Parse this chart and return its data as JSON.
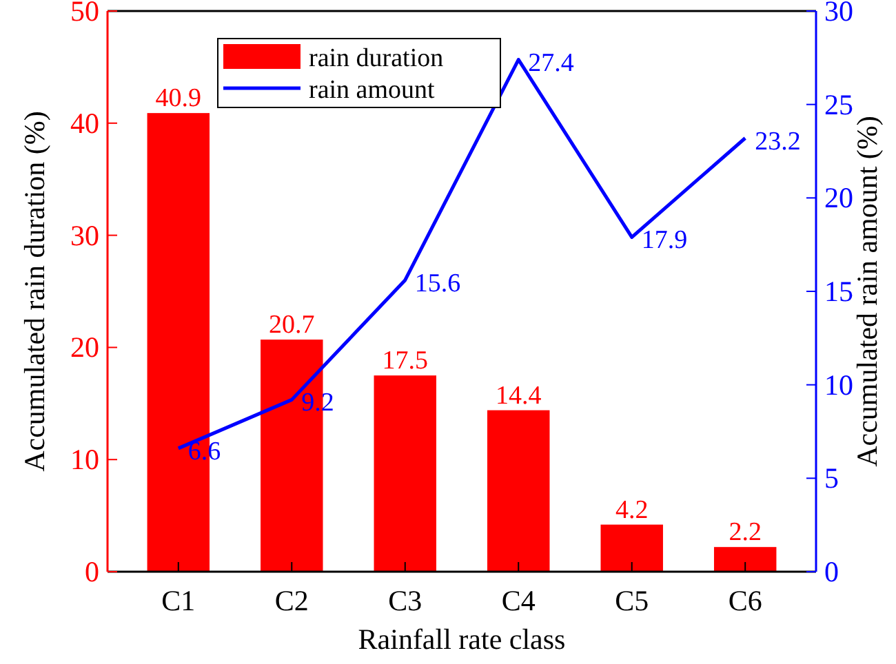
{
  "chart_data": {
    "type": "bar",
    "xlabel": "Rainfall rate class",
    "ylabel": "Accumulated rain duration (%)",
    "y2label": "Accumulated rain amount (%)",
    "categories": [
      "C1",
      "C2",
      "C3",
      "C4",
      "C5",
      "C6"
    ],
    "series": [
      {
        "name": "rain duration",
        "color": "#ff0000",
        "values": [
          40.9,
          20.7,
          17.5,
          14.4,
          4.2,
          2.2
        ]
      },
      {
        "name": "rain amount",
        "type": "line",
        "axis": "y2",
        "color": "#0000ff",
        "values": [
          6.6,
          9.2,
          15.6,
          27.4,
          17.9,
          23.2
        ]
      }
    ],
    "ylim": [
      0,
      50
    ],
    "yticks": [
      0,
      10,
      20,
      30,
      40,
      50
    ],
    "y2lim": [
      0,
      30
    ],
    "y2ticks": [
      0,
      5,
      10,
      15,
      20,
      25,
      30
    ],
    "data_labels": true,
    "legend": "top left",
    "grid": false,
    "marker": "none",
    "line_style": "solid"
  }
}
